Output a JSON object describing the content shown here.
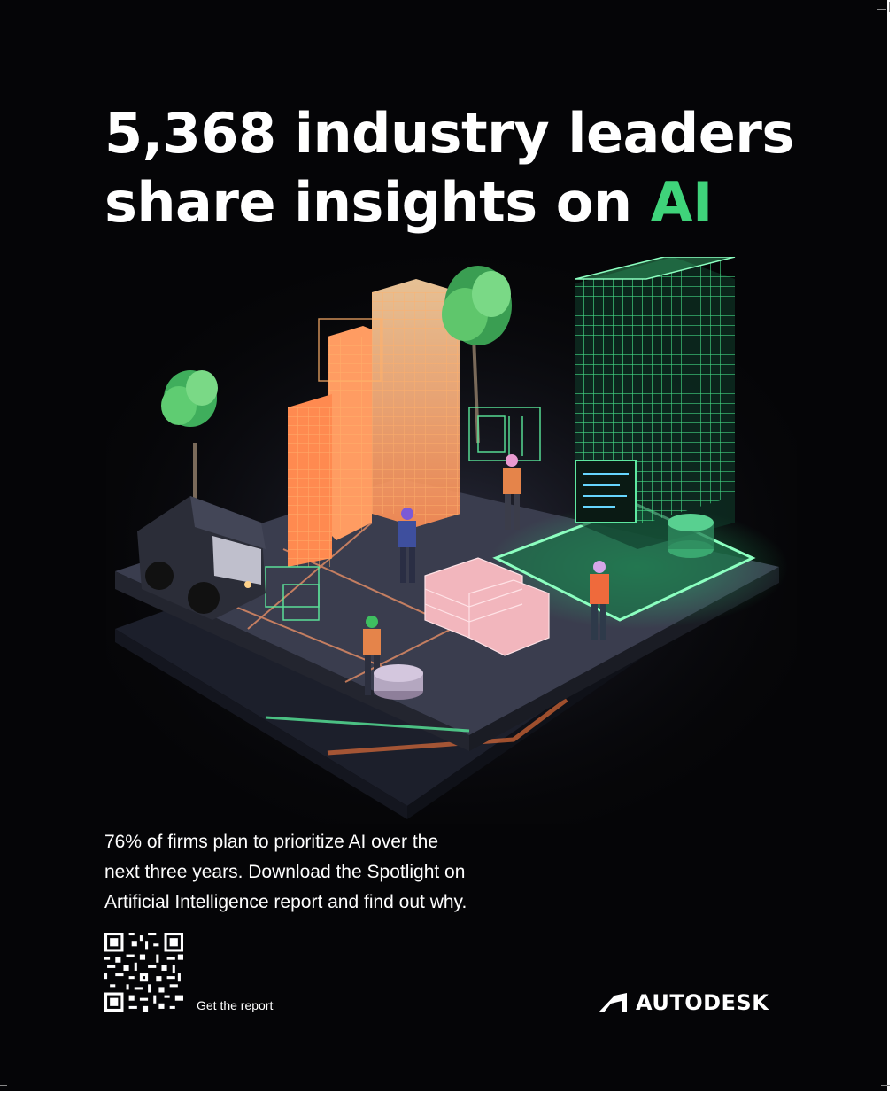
{
  "headline": {
    "line1": "5,368 industry leaders",
    "line2_prefix": "share insights on ",
    "line2_accent": "AI",
    "accent_color": "#3fd37a"
  },
  "body_copy": {
    "line1": "76% of firms plan to prioritize AI over the",
    "line2": "next three years. Download the Spotlight on",
    "line3": "Artificial Intelligence report and find out why."
  },
  "qr": {
    "caption": "Get the report",
    "icon": "qr-code-icon"
  },
  "brand": {
    "logo_icon": "autodesk-logo-icon",
    "name": "AUTODESK"
  },
  "illustration": {
    "description_icons": [
      "building-icon",
      "tree-icon",
      "truck-icon",
      "worker-icon",
      "screen-icon"
    ],
    "colors": {
      "background": "#050507",
      "orange_glow": "#ffb06a",
      "green_glow": "#3fd37a",
      "platform": "#3a3d4e"
    }
  }
}
